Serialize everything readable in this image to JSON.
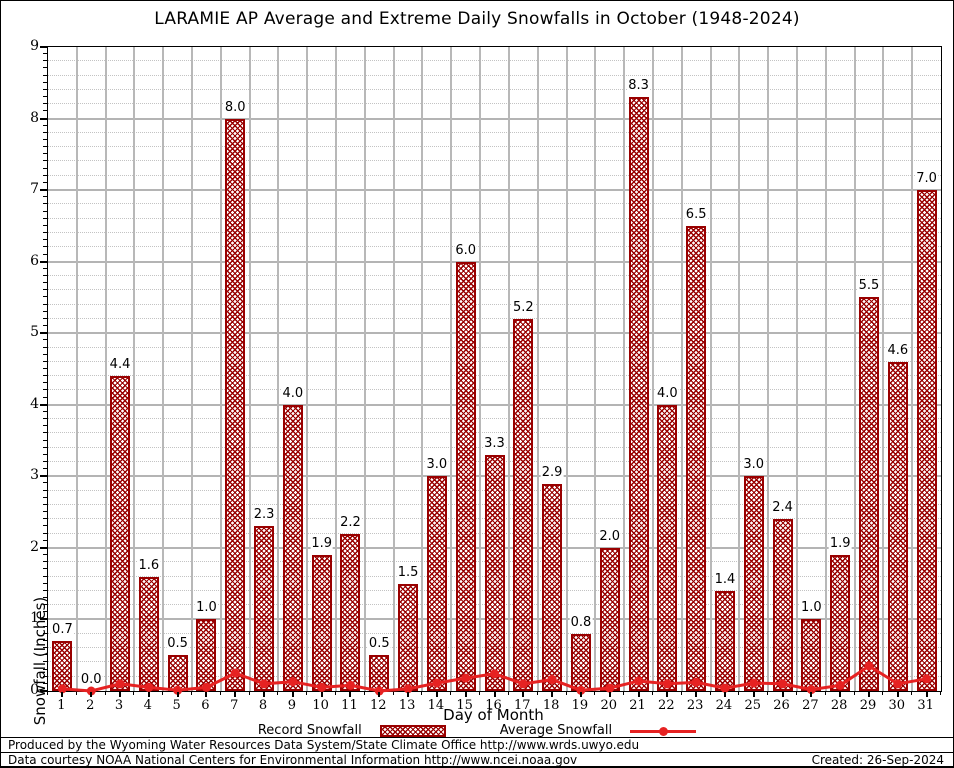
{
  "title": "LARAMIE AP Average and Extreme Daily Snowfalls in October (1948-2024)",
  "axes": {
    "y_label": "Snowfall (Inches)",
    "x_label": "Day of Month",
    "y_ticks": [
      "0",
      "1",
      "2",
      "3",
      "4",
      "5",
      "6",
      "7",
      "8",
      "9"
    ],
    "y_min": 0,
    "y_max": 9
  },
  "legend": {
    "record_label": "Record Snowfall",
    "average_label": "Average Snowfall"
  },
  "footer": {
    "produced": "Produced by the Wyoming Water Resources Data System/State Climate Office http://www.wrds.uwyo.edu",
    "courtesy": "Data courtesy NOAA National Centers for Environmental Information http://www.ncei.noaa.gov",
    "created": "Created: 26-Sep-2024"
  },
  "colors": {
    "bar": "#990000",
    "line": "#e62222",
    "grid_major": "#b4b4b4",
    "grid_minor": "#c3c3c3"
  },
  "chart_data": {
    "type": "bar",
    "title": "LARAMIE AP Average and Extreme Daily Snowfalls in October (1948-2024)",
    "xlabel": "Day of Month",
    "ylabel": "Snowfall (Inches)",
    "ylim": [
      0,
      9
    ],
    "grid": true,
    "legend_position": "bottom",
    "categories": [
      "1",
      "2",
      "3",
      "4",
      "5",
      "6",
      "7",
      "8",
      "9",
      "10",
      "11",
      "12",
      "13",
      "14",
      "15",
      "16",
      "17",
      "18",
      "19",
      "20",
      "21",
      "22",
      "23",
      "24",
      "25",
      "26",
      "27",
      "28",
      "29",
      "30",
      "31"
    ],
    "series": [
      {
        "name": "Record Snowfall",
        "type": "bar",
        "labels_shown": true,
        "values": [
          0.7,
          0.0,
          4.4,
          1.6,
          0.5,
          1.0,
          8.0,
          2.3,
          4.0,
          1.9,
          2.2,
          0.5,
          1.5,
          3.0,
          6.0,
          3.3,
          5.2,
          2.9,
          0.8,
          2.0,
          8.3,
          4.0,
          6.5,
          1.4,
          3.0,
          2.4,
          1.0,
          1.9,
          5.5,
          4.6,
          7.0
        ]
      },
      {
        "name": "Average Snowfall",
        "type": "line",
        "labels_shown": false,
        "values": [
          0.03,
          0.0,
          0.1,
          0.05,
          0.01,
          0.05,
          0.25,
          0.1,
          0.13,
          0.05,
          0.08,
          0.0,
          0.03,
          0.11,
          0.18,
          0.24,
          0.1,
          0.16,
          0.01,
          0.04,
          0.14,
          0.1,
          0.12,
          0.04,
          0.11,
          0.1,
          0.02,
          0.08,
          0.35,
          0.1,
          0.17
        ]
      }
    ]
  }
}
